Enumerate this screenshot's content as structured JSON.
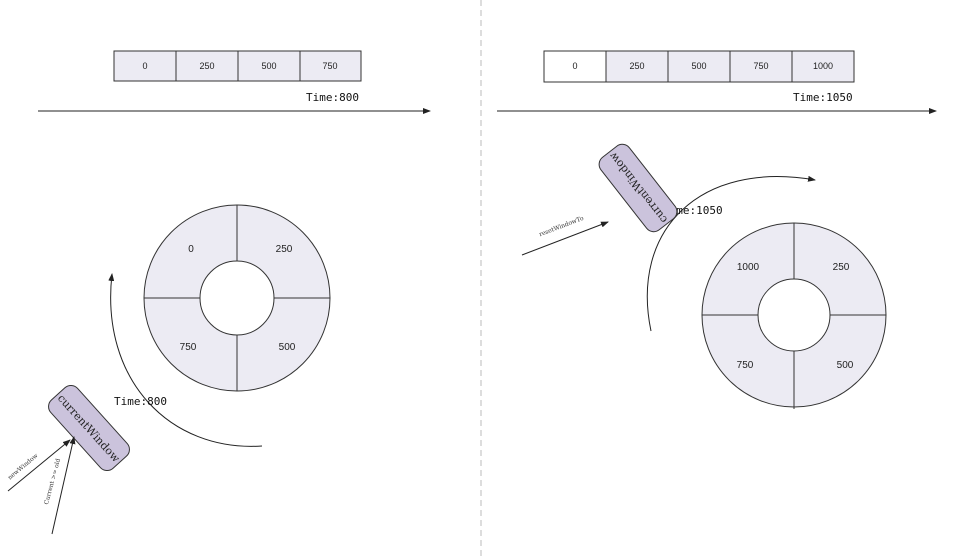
{
  "colors": {
    "fill": "#ecebf3",
    "window_fill": "#cbc3dc",
    "stroke": "#333333",
    "divider": "#bbbbbb"
  },
  "left": {
    "buckets": [
      "0",
      "250",
      "500",
      "750"
    ],
    "timeline_label": "Time:800",
    "ring": {
      "top_left": "0",
      "top_right": "250",
      "bottom_left": "750",
      "bottom_right": "500"
    },
    "arc_label": "Time:800",
    "window_label": "currentWindow",
    "arrow_label_1": "newWindow",
    "arrow_label_2": "Current >= old"
  },
  "right": {
    "buckets": [
      "0",
      "250",
      "500",
      "750",
      "1000"
    ],
    "timeline_label": "Time:1050",
    "ring": {
      "top_left": "1000",
      "top_right": "250",
      "bottom_left": "750",
      "bottom_right": "500"
    },
    "arc_label": "Time:1050",
    "window_label": "currentWindow",
    "arrow_label_1": "resetWindowTo"
  }
}
